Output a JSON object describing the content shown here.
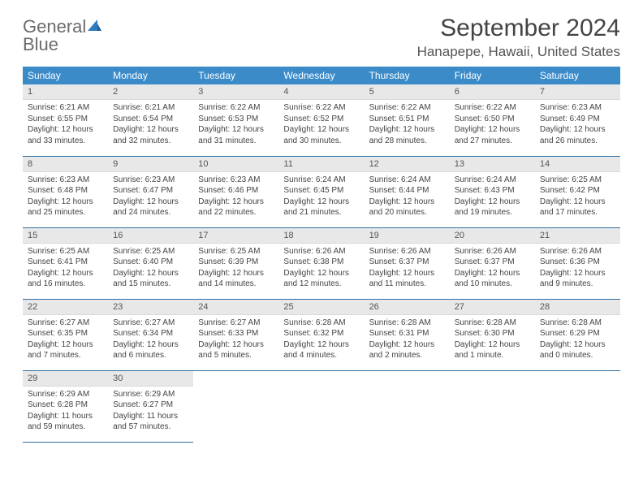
{
  "brand": {
    "part1": "General",
    "part2": "Blue"
  },
  "title": "September 2024",
  "location": "Hanapepe, Hawaii, United States",
  "theme": {
    "header_bg": "#3b8bc9",
    "header_text": "#ffffff",
    "daynum_bg": "#e8e8e8",
    "border_color": "#2f6fa3",
    "logo_gray": "#6b6b6b",
    "logo_blue": "#2f7bbf",
    "body_text": "#444444"
  },
  "calendar": {
    "month": "September",
    "year": 2024,
    "weekdays": [
      "Sunday",
      "Monday",
      "Tuesday",
      "Wednesday",
      "Thursday",
      "Friday",
      "Saturday"
    ],
    "days": [
      {
        "n": 1,
        "sunrise": "6:21 AM",
        "sunset": "6:55 PM",
        "daylight": "12 hours and 33 minutes."
      },
      {
        "n": 2,
        "sunrise": "6:21 AM",
        "sunset": "6:54 PM",
        "daylight": "12 hours and 32 minutes."
      },
      {
        "n": 3,
        "sunrise": "6:22 AM",
        "sunset": "6:53 PM",
        "daylight": "12 hours and 31 minutes."
      },
      {
        "n": 4,
        "sunrise": "6:22 AM",
        "sunset": "6:52 PM",
        "daylight": "12 hours and 30 minutes."
      },
      {
        "n": 5,
        "sunrise": "6:22 AM",
        "sunset": "6:51 PM",
        "daylight": "12 hours and 28 minutes."
      },
      {
        "n": 6,
        "sunrise": "6:22 AM",
        "sunset": "6:50 PM",
        "daylight": "12 hours and 27 minutes."
      },
      {
        "n": 7,
        "sunrise": "6:23 AM",
        "sunset": "6:49 PM",
        "daylight": "12 hours and 26 minutes."
      },
      {
        "n": 8,
        "sunrise": "6:23 AM",
        "sunset": "6:48 PM",
        "daylight": "12 hours and 25 minutes."
      },
      {
        "n": 9,
        "sunrise": "6:23 AM",
        "sunset": "6:47 PM",
        "daylight": "12 hours and 24 minutes."
      },
      {
        "n": 10,
        "sunrise": "6:23 AM",
        "sunset": "6:46 PM",
        "daylight": "12 hours and 22 minutes."
      },
      {
        "n": 11,
        "sunrise": "6:24 AM",
        "sunset": "6:45 PM",
        "daylight": "12 hours and 21 minutes."
      },
      {
        "n": 12,
        "sunrise": "6:24 AM",
        "sunset": "6:44 PM",
        "daylight": "12 hours and 20 minutes."
      },
      {
        "n": 13,
        "sunrise": "6:24 AM",
        "sunset": "6:43 PM",
        "daylight": "12 hours and 19 minutes."
      },
      {
        "n": 14,
        "sunrise": "6:25 AM",
        "sunset": "6:42 PM",
        "daylight": "12 hours and 17 minutes."
      },
      {
        "n": 15,
        "sunrise": "6:25 AM",
        "sunset": "6:41 PM",
        "daylight": "12 hours and 16 minutes."
      },
      {
        "n": 16,
        "sunrise": "6:25 AM",
        "sunset": "6:40 PM",
        "daylight": "12 hours and 15 minutes."
      },
      {
        "n": 17,
        "sunrise": "6:25 AM",
        "sunset": "6:39 PM",
        "daylight": "12 hours and 14 minutes."
      },
      {
        "n": 18,
        "sunrise": "6:26 AM",
        "sunset": "6:38 PM",
        "daylight": "12 hours and 12 minutes."
      },
      {
        "n": 19,
        "sunrise": "6:26 AM",
        "sunset": "6:37 PM",
        "daylight": "12 hours and 11 minutes."
      },
      {
        "n": 20,
        "sunrise": "6:26 AM",
        "sunset": "6:37 PM",
        "daylight": "12 hours and 10 minutes."
      },
      {
        "n": 21,
        "sunrise": "6:26 AM",
        "sunset": "6:36 PM",
        "daylight": "12 hours and 9 minutes."
      },
      {
        "n": 22,
        "sunrise": "6:27 AM",
        "sunset": "6:35 PM",
        "daylight": "12 hours and 7 minutes."
      },
      {
        "n": 23,
        "sunrise": "6:27 AM",
        "sunset": "6:34 PM",
        "daylight": "12 hours and 6 minutes."
      },
      {
        "n": 24,
        "sunrise": "6:27 AM",
        "sunset": "6:33 PM",
        "daylight": "12 hours and 5 minutes."
      },
      {
        "n": 25,
        "sunrise": "6:28 AM",
        "sunset": "6:32 PM",
        "daylight": "12 hours and 4 minutes."
      },
      {
        "n": 26,
        "sunrise": "6:28 AM",
        "sunset": "6:31 PM",
        "daylight": "12 hours and 2 minutes."
      },
      {
        "n": 27,
        "sunrise": "6:28 AM",
        "sunset": "6:30 PM",
        "daylight": "12 hours and 1 minute."
      },
      {
        "n": 28,
        "sunrise": "6:28 AM",
        "sunset": "6:29 PM",
        "daylight": "12 hours and 0 minutes."
      },
      {
        "n": 29,
        "sunrise": "6:29 AM",
        "sunset": "6:28 PM",
        "daylight": "11 hours and 59 minutes."
      },
      {
        "n": 30,
        "sunrise": "6:29 AM",
        "sunset": "6:27 PM",
        "daylight": "11 hours and 57 minutes."
      }
    ],
    "labels": {
      "sunrise": "Sunrise:",
      "sunset": "Sunset:",
      "daylight": "Daylight:"
    },
    "start_weekday": 0,
    "trailing_blanks": 5
  }
}
